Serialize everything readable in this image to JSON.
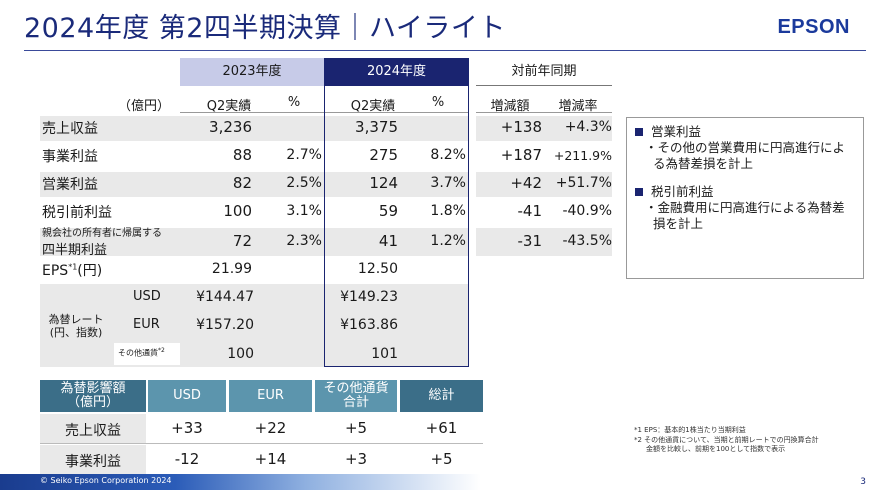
{
  "header": {
    "title": "2024年度 第2四半期決算｜ハイライト",
    "logo": "EPSON"
  },
  "table": {
    "unit": "（億円）",
    "period_2023": "2023年度",
    "period_2024": "2024年度",
    "yoy": "対前年同期",
    "col_q2": "Q2実績",
    "col_pct": "%",
    "col_diff": "増減額",
    "col_rate": "増減率",
    "rows": [
      {
        "label": "売上収益",
        "v2023": "3,236",
        "p2023": "",
        "v2024": "3,375",
        "p2024": "",
        "diff": "+138",
        "rate": "+4.3%"
      },
      {
        "label": "事業利益",
        "v2023": "88",
        "p2023": "2.7%",
        "v2024": "275",
        "p2024": "8.2%",
        "diff": "+187",
        "rate": "+211.9%"
      },
      {
        "label": "営業利益",
        "v2023": "82",
        "p2023": "2.5%",
        "v2024": "124",
        "p2024": "3.7%",
        "diff": "+42",
        "rate": "+51.7%"
      },
      {
        "label": "税引前利益",
        "v2023": "100",
        "p2023": "3.1%",
        "v2024": "59",
        "p2024": "1.8%",
        "diff": "-41",
        "rate": "-40.9%"
      },
      {
        "label_line1": "親会社の所有者に帰属する",
        "label_line2": "四半期利益",
        "v2023": "72",
        "p2023": "2.3%",
        "v2024": "41",
        "p2024": "1.2%",
        "diff": "-31",
        "rate": "-43.5%"
      }
    ],
    "eps": {
      "label": "EPS",
      "sup": "*1",
      "unit": "(円)",
      "v2023": "21.99",
      "v2024": "12.50"
    },
    "fx": {
      "label_line1": "為替レート",
      "label_line2": "(円、指数)",
      "usd": {
        "label": "USD",
        "v2023": "¥144.47",
        "v2024": "¥149.23"
      },
      "eur": {
        "label": "EUR",
        "v2023": "¥157.20",
        "v2024": "¥163.86"
      },
      "other": {
        "label": "その他通貨",
        "sup": "*2",
        "v2023": "100",
        "v2024": "101"
      }
    }
  },
  "notes": {
    "h1": "営業利益",
    "b1": "・その他の営業費用に円高進行による為替差損を計上",
    "h2": "税引前利益",
    "b2": "・金融費用に円高進行による為替差損を計上"
  },
  "fx_impact": {
    "header_line1": "為替影響額",
    "header_line2": "（億円）",
    "col_usd": "USD",
    "col_eur": "EUR",
    "col_other_line1": "その他通貨",
    "col_other_line2": "合計",
    "col_total": "総計",
    "rows": [
      {
        "label": "売上収益",
        "usd": "+33",
        "eur": "+22",
        "other": "+5",
        "total": "+61"
      },
      {
        "label": "事業利益",
        "usd": "-12",
        "eur": "+14",
        "other": "+3",
        "total": "+5"
      }
    ]
  },
  "footnotes": {
    "f1": "*1 EPS：基本的1株当たり当期利益",
    "f2a": "*2 その他通貨について、当期と前期レートでの円換算合計",
    "f2b": "金額を比較し、前期を100として指数で表示"
  },
  "footer": {
    "copyright": "© Seiko Epson Corporation 2024",
    "page": "3"
  },
  "colors": {
    "brand": "#1a2a7a",
    "header_2023": "#c7cbe8",
    "header_2024": "#1a2470",
    "fx_header_dark": "#3b6e88",
    "fx_header_light": "#5c95ad"
  }
}
